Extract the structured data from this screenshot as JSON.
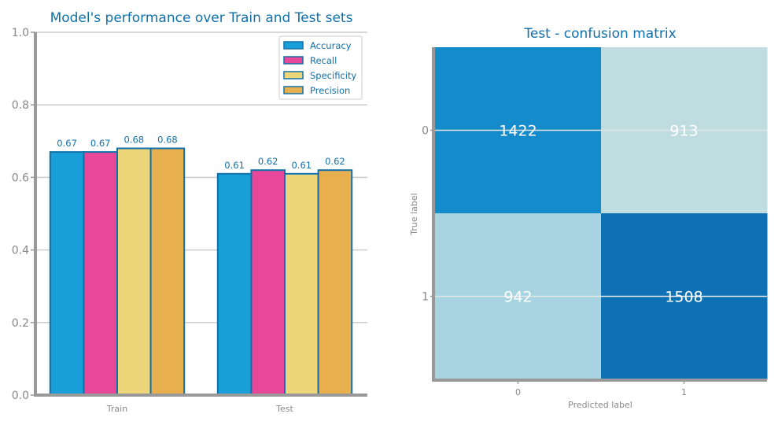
{
  "colors": {
    "title": "#1170aa",
    "axis": "#999999",
    "grid": "#cccccc",
    "bar_edge": "#1170aa",
    "label": "#1170aa",
    "tick": "#888888",
    "cell_text": "#ffffff"
  },
  "chart_data": [
    {
      "type": "bar",
      "title": "Model's performance over Train and Test sets",
      "categories": [
        "Train",
        "Test"
      ],
      "series": [
        {
          "name": "Accuracy",
          "values": [
            0.67,
            0.61
          ],
          "color": "#199fd8"
        },
        {
          "name": "Recall",
          "values": [
            0.67,
            0.62
          ],
          "color": "#e8489a"
        },
        {
          "name": "Specificity",
          "values": [
            0.68,
            0.61
          ],
          "color": "#ecd679"
        },
        {
          "name": "Precision",
          "values": [
            0.68,
            0.62
          ],
          "color": "#e8af4f"
        }
      ],
      "value_labels": [
        [
          "0.67",
          "0.61"
        ],
        [
          "0.67",
          "0.62"
        ],
        [
          "0.68",
          "0.61"
        ],
        [
          "0.68",
          "0.62"
        ]
      ],
      "ylim": [
        0,
        1.0
      ],
      "yticks": [
        "0.0",
        "0.2",
        "0.4",
        "0.6",
        "0.8",
        "1.0"
      ],
      "grid": true,
      "legend": "top-right",
      "xlabel": "",
      "ylabel": ""
    },
    {
      "type": "heatmap",
      "title": "Test - confusion matrix",
      "xlabel": "Predicted label",
      "ylabel": "True label",
      "x_ticks": [
        "0",
        "1"
      ],
      "y_ticks": [
        "0",
        "1"
      ],
      "values": [
        [
          1422,
          913
        ],
        [
          942,
          1508
        ]
      ],
      "cell_colors": [
        [
          "#148ccb",
          "#bfdde1"
        ],
        [
          "#a7d4e0",
          "#0e71b4"
        ]
      ]
    }
  ]
}
